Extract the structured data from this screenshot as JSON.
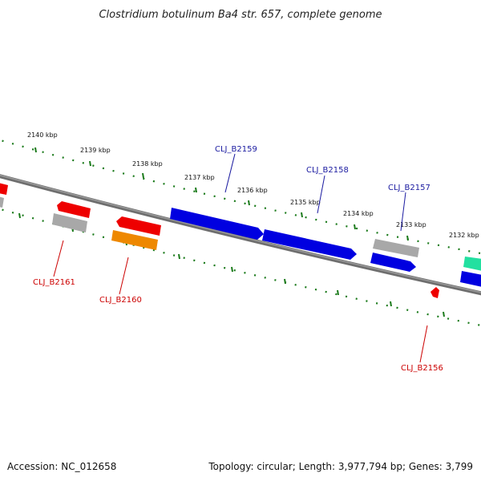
{
  "title": "Clostridium botulinum Ba4 str. 657, complete genome",
  "footer": {
    "accession": "Accession: NC_012658",
    "summary": "Topology: circular; Length: 3,977,794 bp; Genes: 3,799"
  },
  "scale": {
    "ticks": [
      "2140 kbp",
      "2139 kbp",
      "2138 kbp",
      "2137 kbp",
      "2136 kbp",
      "2135 kbp",
      "2134 kbp",
      "2133 kbp",
      "2132 kbp"
    ]
  },
  "colors": {
    "backbone": "#777777",
    "ticks": "#1a7a1a",
    "forward_label": "#1a1aa0",
    "reverse_label": "#cc0000",
    "blue": "#0000e0",
    "red": "#ee0000",
    "gray": "#a8a8a8",
    "orange": "#ee8800",
    "teal": "#22e0a0"
  },
  "genes": [
    {
      "label": "CLJ_B2159",
      "strand": "+",
      "color": "blue"
    },
    {
      "label": "CLJ_B2158",
      "strand": "+",
      "color": "blue"
    },
    {
      "label": "CLJ_B2157",
      "strand": "+",
      "color": "blue"
    },
    {
      "label": "CLJ_B2161",
      "strand": "-",
      "color": "gray"
    },
    {
      "label": "CLJ_B2160",
      "strand": "-",
      "color": "orange"
    },
    {
      "label": "CLJ_B2156",
      "strand": "-",
      "color": "red"
    }
  ]
}
